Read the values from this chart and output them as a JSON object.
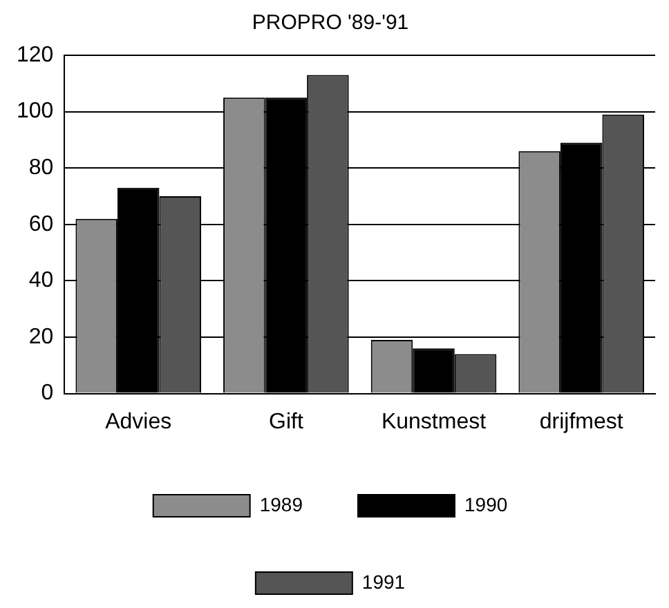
{
  "chart_data": {
    "type": "bar",
    "title": "PROPRO '89-'91",
    "categories": [
      "Advies",
      "Gift",
      "Kunstmest",
      "drijfmest"
    ],
    "series": [
      {
        "name": "1989",
        "color": "#8c8c8c",
        "values": [
          62,
          105,
          19,
          86
        ]
      },
      {
        "name": "1990",
        "color": "#000000",
        "values": [
          73,
          105,
          16,
          89
        ]
      },
      {
        "name": "1991",
        "color": "#555555",
        "values": [
          70,
          113,
          14,
          99
        ]
      }
    ],
    "ylim": [
      0,
      120
    ],
    "yticks": [
      0,
      20,
      40,
      60,
      80,
      100,
      120
    ],
    "grid": "y",
    "legend": "bottom"
  }
}
